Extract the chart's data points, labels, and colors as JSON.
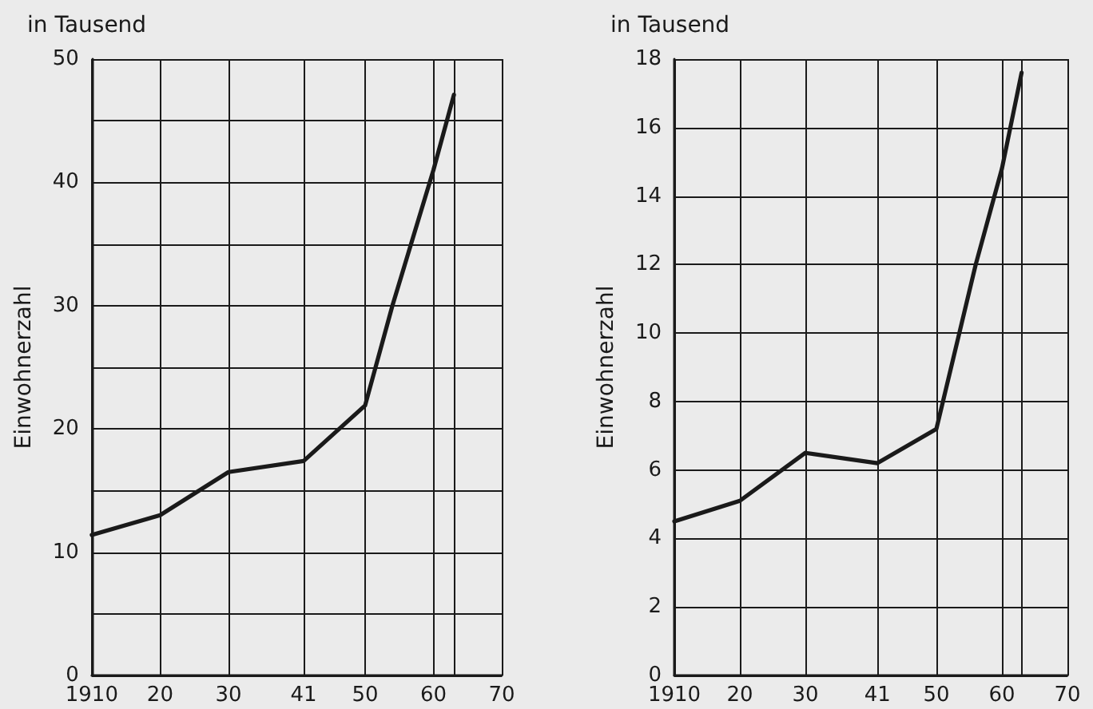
{
  "chart_data": [
    {
      "type": "line",
      "subtitle": "in Tausend",
      "ylabel": "Einwohnerzahl",
      "x": [
        1910,
        1920,
        1930,
        1941,
        1950,
        1954,
        1960,
        1963
      ],
      "series": [
        {
          "color": "#1a1a1a",
          "values": [
            11.4,
            13.0,
            16.5,
            17.4,
            21.9,
            30,
            41,
            47.1
          ]
        }
      ],
      "xlim": [
        1910,
        1970
      ],
      "xticks": [
        1910,
        {
          "value": 1920,
          "label": "20"
        },
        {
          "value": 1930,
          "label": "30"
        },
        {
          "value": 1941,
          "label": "41"
        },
        {
          "value": 1950,
          "label": "50"
        },
        {
          "value": 1960,
          "label": "60"
        },
        {
          "value": 1963,
          "label": null
        },
        {
          "value": 1970,
          "label": "70"
        }
      ],
      "ylim": [
        0,
        50
      ],
      "yticks": [
        0,
        {
          "value": 5,
          "label": null
        },
        10,
        {
          "value": 15,
          "label": null
        },
        20,
        {
          "value": 25,
          "label": null
        },
        30,
        {
          "value": 35,
          "label": null
        },
        40,
        {
          "value": 45,
          "label": null
        },
        50
      ],
      "grid": true,
      "marker": "none",
      "line_style": "solid"
    },
    {
      "type": "line",
      "subtitle": "in Tausend",
      "ylabel": "Einwohnerzahl",
      "x": [
        1910,
        1920,
        1930,
        1941,
        1950,
        1956,
        1960,
        1963
      ],
      "series": [
        {
          "color": "#1a1a1a",
          "values": [
            4.5,
            5.1,
            6.5,
            6.2,
            7.2,
            12.0,
            14.8,
            17.6
          ]
        }
      ],
      "xlim": [
        1910,
        1970
      ],
      "xticks": [
        1910,
        {
          "value": 1920,
          "label": "20"
        },
        {
          "value": 1930,
          "label": "30"
        },
        {
          "value": 1941,
          "label": "41"
        },
        {
          "value": 1950,
          "label": "50"
        },
        {
          "value": 1960,
          "label": "60"
        },
        {
          "value": 1963,
          "label": null
        },
        {
          "value": 1970,
          "label": "70"
        }
      ],
      "ylim": [
        0,
        18
      ],
      "yticks": [
        0,
        2,
        4,
        6,
        8,
        10,
        12,
        14,
        16,
        18
      ],
      "grid": true,
      "marker": "none",
      "line_style": "solid"
    }
  ]
}
